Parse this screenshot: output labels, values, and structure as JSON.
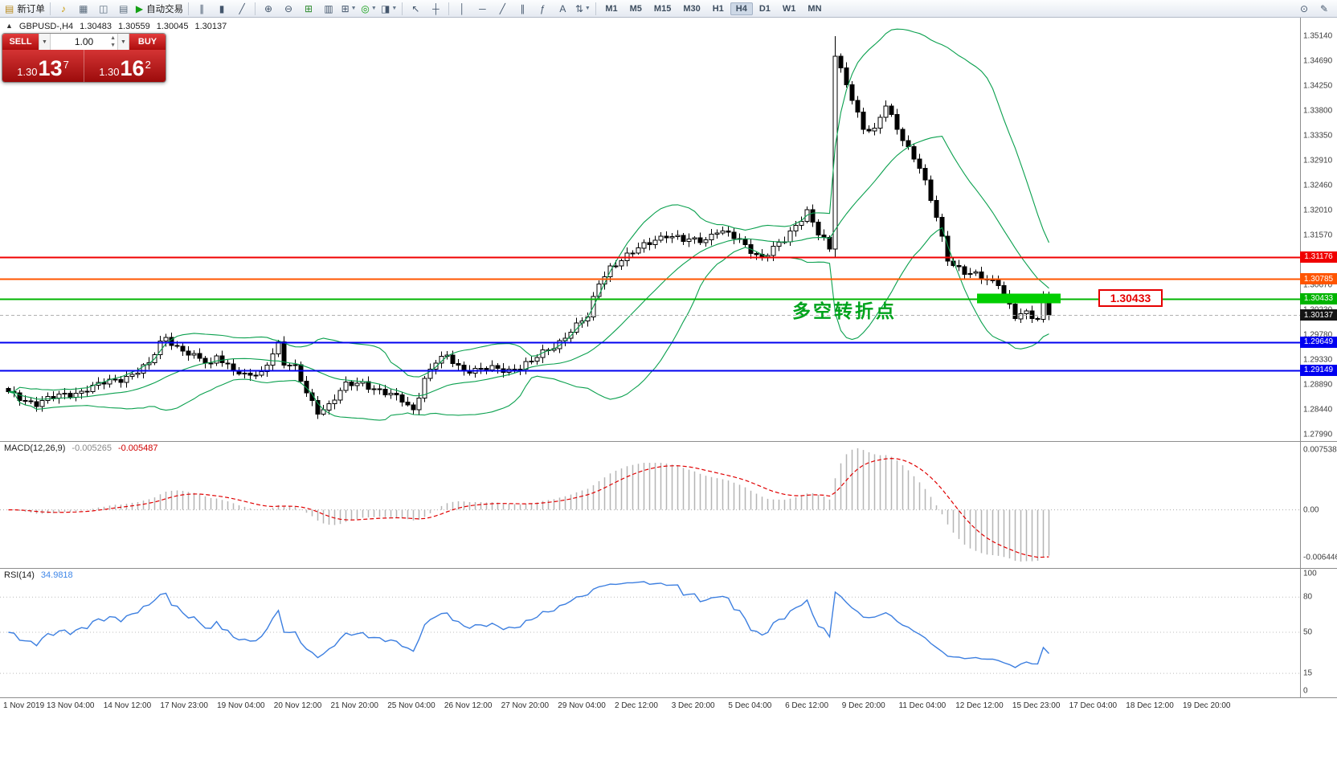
{
  "toolbar": {
    "items": [
      {
        "type": "button",
        "name": "new-order-button",
        "icon": "new-order-icon",
        "glyph": "▤",
        "glyph_color": "#b98a1c",
        "label": "新订单"
      },
      {
        "type": "sep"
      },
      {
        "type": "icon",
        "name": "alerts-icon",
        "glyph": "♪",
        "glyph_color": "#c79600"
      },
      {
        "type": "icon",
        "name": "print-icon",
        "glyph": "▦",
        "glyph_color": "#5a6b7c"
      },
      {
        "type": "icon",
        "name": "chart-window-icon",
        "glyph": "◫",
        "glyph_color": "#5a6b7c"
      },
      {
        "type": "icon",
        "name": "market-watch-icon",
        "glyph": "▤",
        "glyph_color": "#5a6b7c"
      },
      {
        "type": "button",
        "name": "autotrading-button",
        "icon": "autotrading-icon",
        "glyph": "▶",
        "glyph_color": "#14a014",
        "label": "自动交易"
      },
      {
        "type": "sep"
      },
      {
        "type": "icon",
        "name": "chart-bars-icon",
        "glyph": "∥"
      },
      {
        "type": "icon",
        "name": "chart-candles-icon",
        "glyph": "▮"
      },
      {
        "type": "icon",
        "name": "chart-line-icon",
        "glyph": "╱"
      },
      {
        "type": "sep"
      },
      {
        "type": "icon",
        "name": "zoom-in-icon",
        "glyph": "⊕"
      },
      {
        "type": "icon",
        "name": "zoom-out-icon",
        "glyph": "⊖"
      },
      {
        "type": "icon",
        "name": "tile-windows-icon",
        "glyph": "⊞",
        "glyph_color": "#2e8b2e"
      },
      {
        "type": "icon",
        "name": "auto-arrange-icon",
        "glyph": "▥"
      },
      {
        "type": "icon",
        "name": "new-chart-icon",
        "glyph": "⊞",
        "dropdown": true
      },
      {
        "type": "icon",
        "name": "profiles-icon",
        "glyph": "◎",
        "glyph_color": "#14a014",
        "dropdown": true
      },
      {
        "type": "icon",
        "name": "templates-icon",
        "glyph": "◨",
        "dropdown": true
      },
      {
        "type": "sep"
      },
      {
        "type": "icon",
        "name": "cursor-icon",
        "glyph": "↖"
      },
      {
        "type": "icon",
        "name": "crosshair-icon",
        "glyph": "┼"
      },
      {
        "type": "sep"
      },
      {
        "type": "icon",
        "name": "vertical-line-icon",
        "glyph": "│"
      },
      {
        "type": "icon",
        "name": "horizontal-line-icon",
        "glyph": "─"
      },
      {
        "type": "icon",
        "name": "trendline-icon",
        "glyph": "╱"
      },
      {
        "type": "icon",
        "name": "equidistant-channel-icon",
        "glyph": "∥"
      },
      {
        "type": "icon",
        "name": "fibonacci-icon",
        "glyph": "ƒ"
      },
      {
        "type": "icon",
        "name": "text-label-icon",
        "glyph": "A"
      },
      {
        "type": "icon",
        "name": "arrows-tool-icon",
        "glyph": "⇅",
        "dropdown": true
      },
      {
        "type": "sep"
      }
    ],
    "timeframes": [
      "M1",
      "M5",
      "M15",
      "M30",
      "H1",
      "H4",
      "D1",
      "W1",
      "MN"
    ],
    "active_timeframe": "H4",
    "right_items": [
      {
        "type": "icon",
        "name": "quick-search-icon",
        "glyph": "⊙"
      },
      {
        "type": "icon",
        "name": "quick-edit-icon",
        "glyph": "✎"
      }
    ]
  },
  "chart_header": {
    "symbol": "GBPUSD-,H4",
    "open": "1.30483",
    "high": "1.30559",
    "low": "1.30045",
    "close": "1.30137"
  },
  "trade_panel": {
    "sell_label": "SELL",
    "buy_label": "BUY",
    "volume": "1.00",
    "sell_price_main": "1.30",
    "sell_price_pips": "13",
    "sell_price_point": "7",
    "buy_price_main": "1.30",
    "buy_price_pips": "16",
    "buy_price_point": "2"
  },
  "annotation": {
    "text": "多空转折点",
    "color": "#00a31c"
  },
  "level_callout": {
    "text": "1.30433",
    "color": "#e60000"
  },
  "highlight_zone": {
    "price": 1.30433,
    "color": "#00ce00"
  },
  "levels": [
    {
      "price": 1.31176,
      "label": "1.31176",
      "color": "#f00000"
    },
    {
      "price": 1.30785,
      "label": "1.30785",
      "color": "#ff5500"
    },
    {
      "price": 1.30433,
      "label": "1.30433",
      "color": "#00b400"
    },
    {
      "price": 1.29649,
      "label": "1.29649",
      "color": "#0000f0"
    },
    {
      "price": 1.29149,
      "label": "1.29149",
      "color": "#0000f0"
    }
  ],
  "current_price_tag": {
    "price": 1.30137,
    "label": "1.30137",
    "color": "#141414"
  },
  "price_axis": {
    "ticks": [
      "1.35140",
      "1.34690",
      "1.34250",
      "1.33800",
      "1.33350",
      "1.32910",
      "1.32460",
      "1.32010",
      "1.31570",
      "1.31120",
      "1.30670",
      "1.30230",
      "1.29780",
      "1.29330",
      "1.28890",
      "1.28440",
      "1.27990"
    ]
  },
  "macd_panel": {
    "label": "MACD(12,26,9)",
    "value1": "-0.005265",
    "value2": "-0.005487",
    "scale_top": "0.007538",
    "scale_zero": "0.00",
    "scale_bottom": "-0.006446"
  },
  "rsi_panel": {
    "label": "RSI(14)",
    "value": "34.9818",
    "scale": [
      {
        "v": 100,
        "t": "100"
      },
      {
        "v": 80,
        "t": "80"
      },
      {
        "v": 50,
        "t": "50"
      },
      {
        "v": 15,
        "t": "15"
      },
      {
        "v": 0,
        "t": "0"
      }
    ],
    "levels": [
      80,
      50,
      15
    ]
  },
  "time_axis": {
    "labels": [
      "1 Nov 2019",
      "13 Nov 04:00",
      "14 Nov 12:00",
      "17 Nov 23:00",
      "19 Nov 04:00",
      "20 Nov 12:00",
      "21 Nov 20:00",
      "25 Nov 04:00",
      "26 Nov 12:00",
      "27 Nov 20:00",
      "29 Nov 04:00",
      "2 Dec 12:00",
      "3 Dec 20:00",
      "5 Dec 04:00",
      "6 Dec 12:00",
      "9 Dec 20:00",
      "11 Dec 04:00",
      "12 Dec 12:00",
      "15 Dec 23:00",
      "17 Dec 04:00",
      "18 Dec 12:00",
      "19 Dec 20:00"
    ]
  },
  "chart_data": {
    "type": "candlestick",
    "symbol": "GBPUSD-",
    "timeframe": "H4",
    "current_bar": {
      "open": 1.30483,
      "high": 1.30559,
      "low": 1.30045,
      "close": 1.30137
    },
    "price_axis_top": 1.3514,
    "price_axis_bottom": 1.2799,
    "candles_count": 186,
    "price_keyframes": [
      [
        0,
        1.2872
      ],
      [
        5,
        1.2856
      ],
      [
        10,
        1.287
      ],
      [
        16,
        1.2887
      ],
      [
        20,
        1.29
      ],
      [
        25,
        1.2923
      ],
      [
        27,
        1.2962
      ],
      [
        28,
        1.2975
      ],
      [
        30,
        1.2958
      ],
      [
        33,
        1.2937
      ],
      [
        36,
        1.2923
      ],
      [
        37,
        1.2944
      ],
      [
        40,
        1.2916
      ],
      [
        42,
        1.2901
      ],
      [
        45,
        1.2909
      ],
      [
        47,
        1.295
      ],
      [
        48,
        1.2964
      ],
      [
        49,
        1.2926
      ],
      [
        51,
        1.2916
      ],
      [
        53,
        1.2874
      ],
      [
        55,
        1.2843
      ],
      [
        57,
        1.2852
      ],
      [
        60,
        1.2886
      ],
      [
        63,
        1.2894
      ],
      [
        67,
        1.2872
      ],
      [
        70,
        1.286
      ],
      [
        72,
        1.2845
      ],
      [
        74,
        1.29
      ],
      [
        76,
        1.2928
      ],
      [
        78,
        1.2937
      ],
      [
        81,
        1.2917
      ],
      [
        85,
        1.2915
      ],
      [
        89,
        1.2916
      ],
      [
        93,
        1.2929
      ],
      [
        97,
        1.2958
      ],
      [
        100,
        1.2987
      ],
      [
        103,
        1.3008
      ],
      [
        105,
        1.3072
      ],
      [
        107,
        1.3102
      ],
      [
        111,
        1.3124
      ],
      [
        115,
        1.3152
      ],
      [
        117,
        1.3158
      ],
      [
        120,
        1.3145
      ],
      [
        124,
        1.3152
      ],
      [
        126,
        1.3166
      ],
      [
        130,
        1.3146
      ],
      [
        134,
        1.3117
      ],
      [
        138,
        1.3146
      ],
      [
        141,
        1.319
      ],
      [
        142,
        1.3203
      ],
      [
        144,
        1.316
      ],
      [
        146,
        1.3132
      ],
      [
        147,
        1.3478
      ],
      [
        149,
        1.343
      ],
      [
        150,
        1.3406
      ],
      [
        152,
        1.3348
      ],
      [
        154,
        1.3341
      ],
      [
        156,
        1.339
      ],
      [
        159,
        1.3333
      ],
      [
        162,
        1.3276
      ],
      [
        165,
        1.319
      ],
      [
        167,
        1.3117
      ],
      [
        170,
        1.3088
      ],
      [
        173,
        1.308
      ],
      [
        176,
        1.3074
      ],
      [
        178,
        1.303
      ],
      [
        179,
        1.3008
      ],
      [
        181,
        1.3014
      ],
      [
        183,
        1.3006
      ],
      [
        184,
        1.30483
      ],
      [
        185,
        1.30137
      ]
    ],
    "special_candles": {
      "147": {
        "h": 1.3514,
        "l": 1.3116
      },
      "184": {
        "h": 1.3056,
        "l": 1.3
      },
      "185": {
        "h": 1.30559,
        "l": 1.30045
      }
    },
    "indicators": {
      "bollinger": {
        "period": 20,
        "deviation": 2
      },
      "macd": {
        "fast": 12,
        "slow": 26,
        "signal": 9
      },
      "rsi": {
        "period": 14
      }
    }
  }
}
